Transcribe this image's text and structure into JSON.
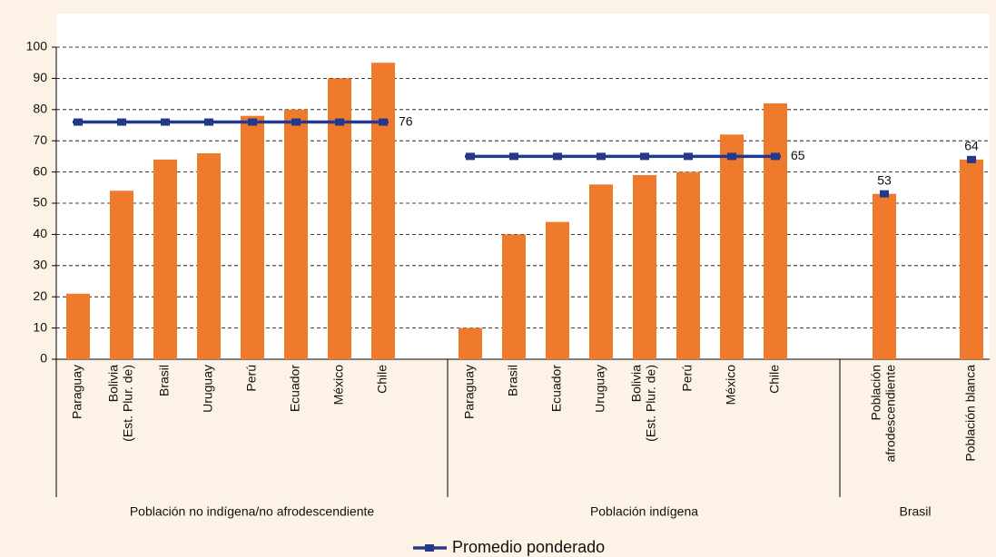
{
  "chart_data": {
    "type": "bar",
    "ylim": [
      0,
      100
    ],
    "yticks": [
      0,
      10,
      20,
      30,
      40,
      50,
      60,
      70,
      80,
      90,
      100
    ],
    "grid": true,
    "bar_color": "#f07a2c",
    "line_series": {
      "name": "Promedio ponderado",
      "color": "#24398a"
    },
    "groups": [
      {
        "label": "Población no indígena/no afrodescendiente",
        "categories": [
          "Paraguay",
          [
            "Bolivia",
            "(Est. Plur. de)"
          ],
          "Brasil",
          "Uruguay",
          "Perú",
          "Ecuador",
          "México",
          "Chile"
        ],
        "values": [
          21,
          54,
          64,
          66,
          78,
          80,
          90,
          95
        ],
        "average_style": "line",
        "average": [
          76,
          76,
          76,
          76,
          76,
          76,
          76,
          76
        ]
      },
      {
        "label": "Población indígena",
        "categories": [
          "Paraguay",
          "Brasil",
          "Ecuador",
          "Uruguay",
          [
            "Bolivia",
            "(Est. Plur. de)"
          ],
          "Perú",
          "México",
          "Chile"
        ],
        "values": [
          10,
          40,
          44,
          56,
          59,
          60,
          72,
          82
        ],
        "average_style": "line",
        "average": [
          65,
          65,
          65,
          65,
          65,
          65,
          65,
          65
        ]
      },
      {
        "label": "Brasil",
        "categories": [
          [
            "Población",
            "afrodescendiente"
          ],
          "Población blanca"
        ],
        "values": [
          53,
          64
        ],
        "average_style": "points",
        "average": [
          53,
          64
        ]
      }
    ]
  }
}
